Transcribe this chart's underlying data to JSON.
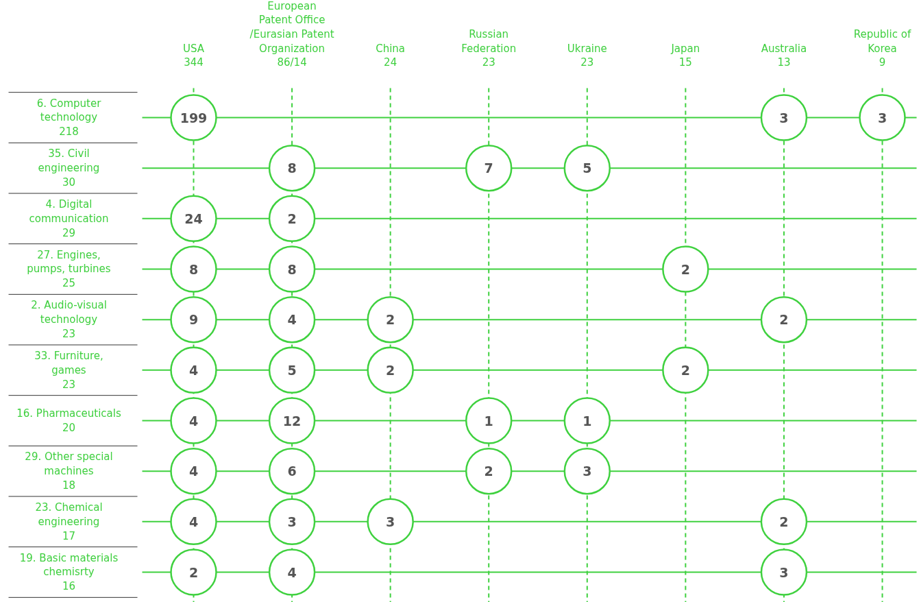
{
  "chart_data": {
    "type": "heatmap",
    "data_labels": true,
    "grid": true,
    "categories": [
      "USA\n344",
      "European\nPatent Office\n/Eurasian Patent\nOrganization\n86/14",
      "China\n24",
      "Russian\nFederation\n23",
      "Ukraine\n23",
      "Japan\n15",
      "Australia\n13",
      "Republic of\nKorea\n9"
    ],
    "y_categories": [
      "6. Computer\ntechnology\n218",
      "35. Civil\nengineering\n30",
      "4. Digital\ncommunication\n29",
      "27. Engines,\npumps, turbines\n25",
      "2. Audio-visual\ntechnology\n23",
      "33. Furniture,\ngames\n23",
      "16. Pharmaceuticals\n20",
      "29. Other special\nmachines\n18",
      "23. Chemical\nengineering\n17",
      "19. Basic materials\nchemisrty\n16"
    ],
    "cells": [
      [
        199,
        null,
        null,
        null,
        null,
        null,
        3,
        3
      ],
      [
        null,
        8,
        null,
        7,
        5,
        null,
        null,
        null
      ],
      [
        24,
        2,
        null,
        null,
        null,
        null,
        null,
        null
      ],
      [
        8,
        8,
        null,
        null,
        null,
        2,
        null,
        null
      ],
      [
        9,
        4,
        2,
        null,
        null,
        null,
        2,
        null
      ],
      [
        4,
        5,
        2,
        null,
        null,
        2,
        null,
        null
      ],
      [
        4,
        12,
        null,
        1,
        1,
        null,
        null,
        null
      ],
      [
        4,
        6,
        null,
        2,
        3,
        null,
        null,
        null
      ],
      [
        4,
        3,
        3,
        null,
        null,
        null,
        2,
        null
      ],
      [
        2,
        4,
        null,
        null,
        null,
        null,
        3,
        null
      ]
    ]
  }
}
